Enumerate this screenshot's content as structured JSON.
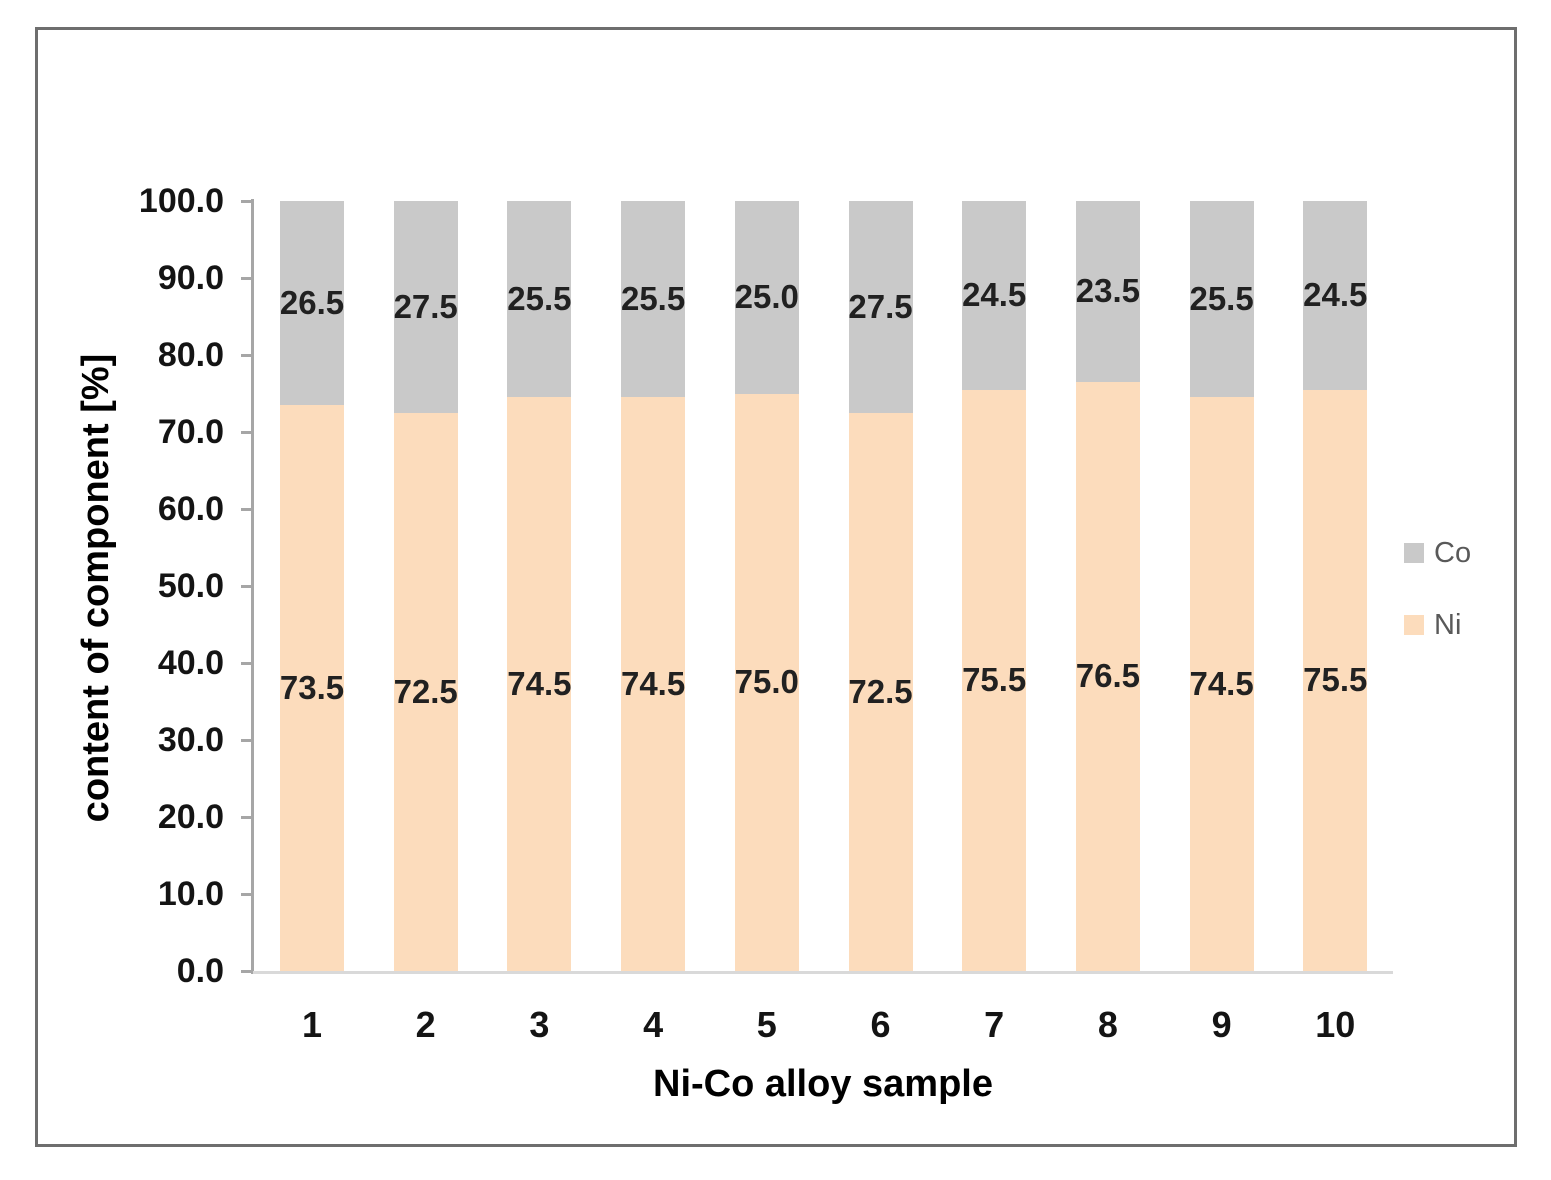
{
  "chart_data": {
    "type": "bar",
    "stacked": true,
    "title": "",
    "xlabel": "Ni-Co alloy sample",
    "ylabel": "content of component [%]",
    "categories": [
      "1",
      "2",
      "3",
      "4",
      "5",
      "6",
      "7",
      "8",
      "9",
      "10"
    ],
    "series": [
      {
        "name": "Ni",
        "color": "#fcdcbc",
        "values": [
          73.5,
          72.5,
          74.5,
          74.5,
          75.0,
          72.5,
          75.5,
          76.5,
          74.5,
          75.5
        ],
        "labels": [
          "73.5",
          "72.5",
          "74.5",
          "74.5",
          "75.0",
          "72.5",
          "75.5",
          "76.5",
          "74.5",
          "75.5"
        ]
      },
      {
        "name": "Co",
        "color": "#c9c9c9",
        "values": [
          26.5,
          27.5,
          25.5,
          25.5,
          25.0,
          27.5,
          24.5,
          23.5,
          25.5,
          24.5
        ],
        "labels": [
          "26.5",
          "27.5",
          "25.5",
          "25.5",
          "25.0",
          "27.5",
          "24.5",
          "23.5",
          "25.5",
          "24.5"
        ]
      }
    ],
    "ylim": [
      0,
      100
    ],
    "y_tick_step": 10,
    "y_tick_labels": [
      "0.0",
      "10.0",
      "20.0",
      "30.0",
      "40.0",
      "50.0",
      "60.0",
      "70.0",
      "80.0",
      "90.0",
      "100.0"
    ],
    "grid": false,
    "data_labels": true,
    "legend_position": "right",
    "legend_entries": [
      {
        "label": "Co",
        "series": "Co"
      },
      {
        "label": "Ni",
        "series": "Ni"
      }
    ]
  },
  "colors": {
    "frame_border": "#6e6e6e",
    "y_axis_line": "#a6a6a6",
    "x_axis_line": "#d9d9d9",
    "tick_label": "#141414",
    "data_label": "#212121",
    "legend_text": "#595959",
    "background": "#ffffff"
  }
}
